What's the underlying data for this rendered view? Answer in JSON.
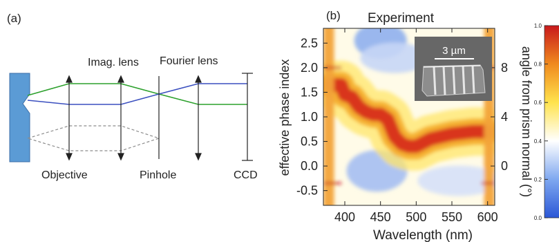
{
  "panel_a": {
    "label": "(a)",
    "labels": {
      "imag_lens": "Imag. lens",
      "fourier_lens": "Fourier lens",
      "objective": "Objective",
      "pinhole": "Pinhole",
      "ccd": "CCD"
    },
    "colors": {
      "sample": "#5b9bd5",
      "green_ray": "#2ca02c",
      "blue_ray": "#3a4fbf",
      "dashed_ray": "#8c8c8c"
    }
  },
  "panel_b": {
    "label": "(b)",
    "title": "Experiment",
    "xlabel": "Wavelength (nm)",
    "ylabel_left": "effective phase index",
    "ylabel_right": "angle from prism normal (°)",
    "inset_scale": "3 µm",
    "colorbar_ticks": [
      "1.0",
      "0.8",
      "0.6",
      "0.4",
      "0.2",
      "0.0"
    ]
  },
  "chart_data": {
    "type": "heatmap",
    "title": "Experiment",
    "xlabel": "Wavelength (nm)",
    "ylabel": "effective phase index",
    "y2label": "angle from prism normal (°)",
    "xlim": [
      370,
      610
    ],
    "ylim": [
      -0.8,
      2.8
    ],
    "x_ticks": [
      400,
      450,
      500,
      550,
      600
    ],
    "y_ticks": [
      -0.5,
      0.0,
      0.5,
      1.0,
      1.5,
      2.0,
      2.5
    ],
    "y2_ticks": [
      0,
      4,
      8
    ],
    "y2_tick_positions": [
      0.0,
      1.0,
      2.0
    ],
    "colorbar": {
      "range": [
        0.0,
        1.0
      ],
      "ticks": [
        0.0,
        0.2,
        0.4,
        0.6,
        0.8,
        1.0
      ],
      "colors": [
        "#2b57d6",
        "#7fa8f0",
        "#ffffff",
        "#ffe34d",
        "#f08a1e",
        "#c8191c"
      ]
    },
    "ridge": {
      "wavelength": [
        380,
        395,
        400,
        410,
        420,
        430,
        440,
        450,
        460,
        470,
        480,
        490,
        500,
        520,
        550,
        580,
        600
      ],
      "phase_index": [
        1.65,
        1.65,
        1.45,
        1.4,
        1.2,
        1.1,
        1.05,
        1.05,
        0.95,
        0.6,
        0.45,
        0.4,
        0.4,
        0.55,
        0.65,
        0.7,
        0.7
      ]
    },
    "bright_bands": [
      {
        "wavelength": [
          370,
          385
        ],
        "description": "high intensity band"
      },
      {
        "wavelength": [
          595,
          610
        ],
        "description": "high intensity band"
      }
    ],
    "horizontal_streaks_phase_index": [
      2.0,
      -0.35
    ]
  }
}
